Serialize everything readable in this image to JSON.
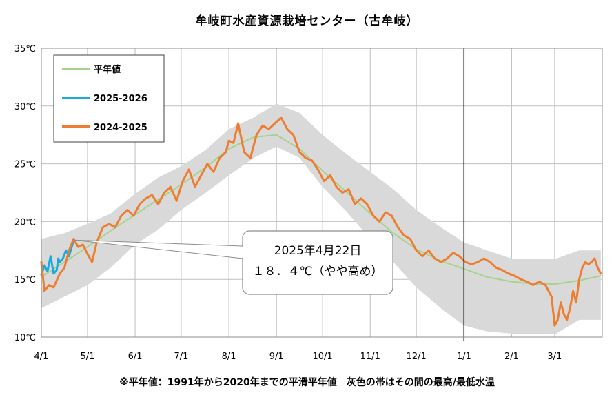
{
  "chart_data": {
    "type": "line",
    "title": "牟岐町水産資源栽培センター（古牟岐）",
    "footnote": "※平年値：1991年から2020年までの平滑平年値　灰色の帯はその間の最高/最低水温",
    "x_ticks": [
      "4/1",
      "5/1",
      "6/1",
      "7/1",
      "8/1",
      "9/1",
      "10/1",
      "11/1",
      "12/1",
      "1/1",
      "2/1",
      "3/1"
    ],
    "y_ticks": [
      "10℃",
      "15℃",
      "20℃",
      "25℃",
      "30℃",
      "35℃"
    ],
    "ylim": [
      10,
      35
    ],
    "x_domain_days": [
      0,
      365
    ],
    "vertical_marker_day": 275,
    "grid": true,
    "legend": {
      "position": "top-left",
      "items": [
        {
          "label": "平年値",
          "color": "#a6d38a"
        },
        {
          "label": "2025-2026",
          "color": "#1aa9e0"
        },
        {
          "label": "2024-2025",
          "color": "#ed7d31"
        }
      ]
    },
    "annotation": {
      "line1": "2025年4月22日",
      "line2": "１８．４℃（やや高め）",
      "point_day": 21,
      "point_value": 18.4
    },
    "band": {
      "name": "灰色の帯",
      "color": "#d9d9d9",
      "x": [
        0,
        15,
        30,
        45,
        61,
        76,
        91,
        107,
        122,
        138,
        153,
        168,
        183,
        199,
        214,
        229,
        244,
        260,
        275,
        290,
        306,
        321,
        335,
        350,
        364
      ],
      "upper": [
        18.5,
        19.0,
        19.8,
        20.7,
        22.4,
        23.8,
        24.8,
        26.2,
        28.0,
        29.0,
        30.2,
        29.4,
        27.5,
        25.8,
        24.3,
        22.8,
        21.0,
        19.5,
        18.2,
        17.5,
        16.8,
        16.8,
        16.8,
        17.5,
        17.5
      ],
      "lower": [
        12.5,
        13.5,
        14.5,
        16.0,
        18.0,
        19.3,
        21.0,
        22.5,
        24.0,
        25.5,
        26.5,
        25.5,
        23.0,
        20.8,
        18.5,
        16.5,
        14.3,
        12.5,
        11.0,
        10.5,
        10.3,
        10.3,
        10.3,
        11.5,
        11.5
      ]
    },
    "series": [
      {
        "name": "平年値",
        "color": "#a6d38a",
        "x": [
          0,
          15,
          30,
          45,
          61,
          76,
          91,
          107,
          122,
          138,
          153,
          168,
          183,
          199,
          214,
          229,
          244,
          260,
          275,
          290,
          306,
          321,
          335,
          350,
          364
        ],
        "values": [
          15.2,
          16.5,
          17.8,
          19.2,
          20.6,
          21.9,
          23.2,
          24.7,
          26.3,
          27.3,
          27.5,
          26.3,
          24.4,
          22.5,
          20.7,
          19.0,
          17.6,
          16.6,
          15.9,
          15.2,
          14.8,
          14.6,
          14.6,
          14.9,
          15.3
        ]
      },
      {
        "name": "2025-2026",
        "color": "#1aa9e0",
        "x": [
          0,
          2,
          4,
          6,
          8,
          10,
          11,
          12,
          14,
          16,
          18,
          20,
          21
        ],
        "values": [
          15.4,
          16.2,
          15.7,
          17.0,
          15.5,
          15.8,
          16.8,
          16.5,
          16.8,
          17.5,
          17.0,
          17.9,
          18.4
        ]
      },
      {
        "name": "2024-2025",
        "color": "#ed7d31",
        "x": [
          0,
          2,
          5,
          8,
          12,
          15,
          18,
          21,
          24,
          27,
          30,
          33,
          36,
          40,
          44,
          48,
          52,
          56,
          60,
          64,
          68,
          72,
          76,
          80,
          84,
          88,
          92,
          96,
          100,
          104,
          108,
          112,
          116,
          120,
          122,
          125,
          128,
          132,
          136,
          140,
          144,
          148,
          152,
          156,
          160,
          164,
          168,
          172,
          176,
          180,
          184,
          188,
          192,
          196,
          200,
          204,
          208,
          212,
          216,
          220,
          224,
          228,
          232,
          236,
          240,
          244,
          248,
          252,
          256,
          260,
          264,
          268,
          272,
          276,
          280,
          284,
          288,
          292,
          296,
          300,
          304,
          308,
          312,
          316,
          320,
          324,
          328,
          332,
          334,
          336,
          338,
          340,
          342,
          344,
          346,
          348,
          350,
          352,
          354,
          356,
          358,
          360,
          362,
          364
        ],
        "values": [
          16.5,
          14.0,
          14.5,
          14.3,
          15.5,
          16.0,
          17.5,
          18.5,
          17.8,
          18.0,
          17.2,
          16.5,
          18.2,
          19.5,
          19.8,
          19.5,
          20.5,
          21.0,
          20.5,
          21.5,
          22.0,
          22.3,
          21.5,
          22.5,
          23.0,
          21.8,
          23.5,
          24.5,
          23.0,
          24.0,
          25.0,
          24.3,
          25.5,
          26.0,
          27.0,
          26.8,
          28.5,
          26.0,
          25.5,
          27.5,
          28.3,
          28.0,
          28.5,
          29.0,
          28.0,
          27.5,
          26.0,
          25.5,
          25.3,
          24.5,
          23.5,
          24.0,
          23.0,
          22.5,
          22.8,
          21.5,
          22.0,
          21.5,
          20.5,
          20.0,
          20.8,
          20.5,
          19.5,
          18.8,
          18.5,
          17.5,
          17.0,
          17.5,
          16.8,
          16.5,
          16.8,
          17.3,
          17.0,
          16.5,
          16.3,
          16.5,
          16.8,
          16.5,
          16.0,
          15.8,
          15.5,
          15.3,
          15.0,
          14.8,
          14.5,
          14.8,
          14.5,
          13.5,
          11.0,
          11.5,
          13.0,
          12.0,
          11.5,
          12.5,
          14.0,
          13.0,
          15.0,
          16.0,
          16.5,
          16.3,
          16.5,
          16.8,
          16.0,
          15.5
        ]
      }
    ]
  }
}
